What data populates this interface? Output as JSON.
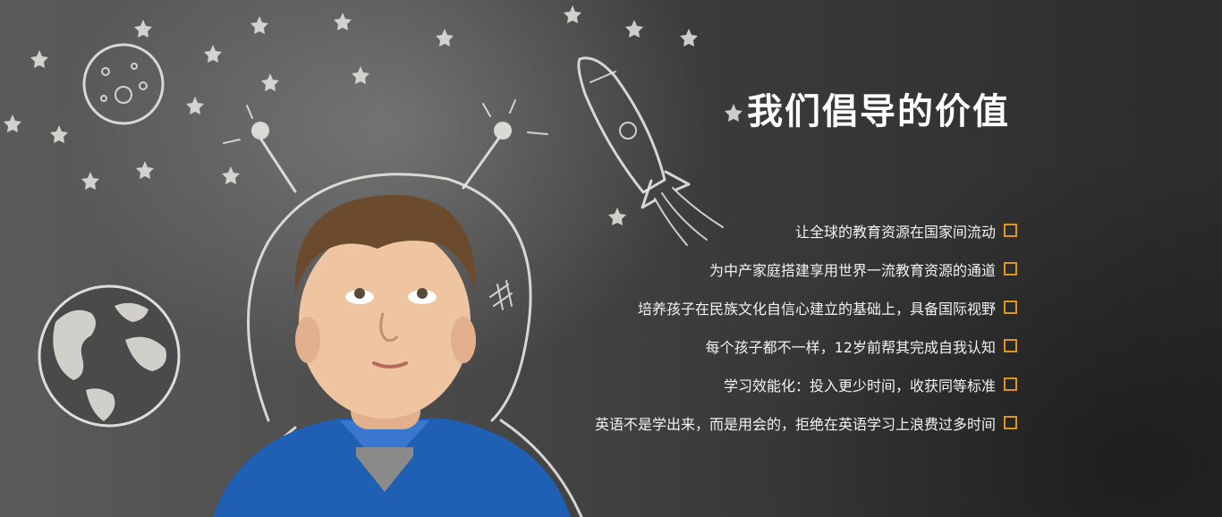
{
  "section": {
    "title": "我们倡导的价值",
    "accent_color": "#e0961c",
    "values": [
      {
        "label": "让全球的教育资源在国家间流动",
        "icon": "square-bullet-icon"
      },
      {
        "label": "为中产家庭搭建享用世界一流教育资源的通道",
        "icon": "square-bullet-icon"
      },
      {
        "label": "培养孩子在民族文化自信心建立的基础上，具备国际视野",
        "icon": "square-bullet-icon"
      },
      {
        "label": "每个孩子都不一样，12岁前帮其完成自我认知",
        "icon": "square-bullet-icon"
      },
      {
        "label": "学习效能化：投入更少时间，收获同等标准",
        "icon": "square-bullet-icon"
      },
      {
        "label": "英语不是学出来，而是用会的，拒绝在英语学习上浪费过多时间",
        "icon": "square-bullet-icon"
      }
    ]
  }
}
